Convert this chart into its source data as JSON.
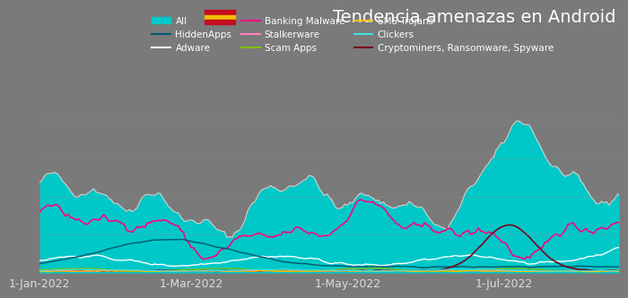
{
  "title": "Tendencia amenazas en Android",
  "background_color": "#7a7a7a",
  "plot_bg_color": "#7a7a7a",
  "x_ticks": [
    "1-Jan-2022",
    "1-Mar-2022",
    "1-May-2022",
    "1-Jul-2022"
  ],
  "title_fontsize": 14,
  "tick_color": "#DDDDDD",
  "tick_fontsize": 9,
  "colors": {
    "all_fill": "#00C8C8",
    "all_outline": "#DDDDDD",
    "banking": "#FF0080",
    "adware": "#FFFFFF",
    "hidden": "#005F73",
    "crypto": "#7B0020",
    "stalker": "#FF80C0",
    "scam": "#80C000",
    "sms": "#FFC000",
    "clickers": "#40E0E0"
  },
  "flag_colors": {
    "red": "#C60B1E",
    "yellow": "#F1BF00"
  }
}
